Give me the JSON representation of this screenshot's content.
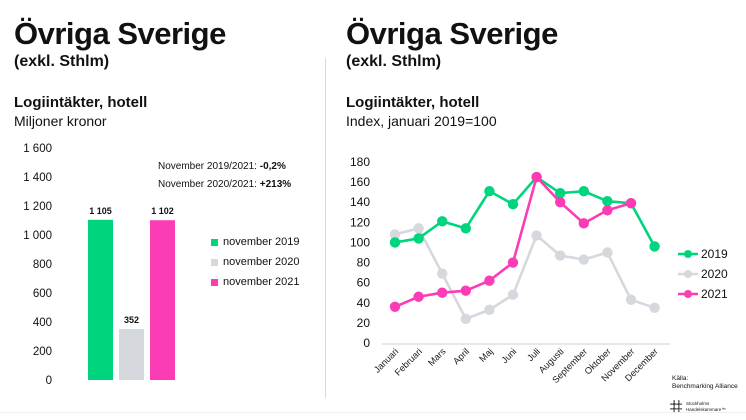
{
  "left_panel": {
    "title": "Övriga Sverige",
    "subtitle": "(exkl. Sthlm)",
    "chart_heading": "Logiintäkter, hotell",
    "chart_subheading": "Miljoner kronor",
    "annotations": [
      {
        "label": "November 2019/2021: ",
        "value": "-0,2%"
      },
      {
        "label": "November 2020/2021: ",
        "value": "+213%"
      }
    ]
  },
  "right_panel": {
    "title": "Övriga Sverige",
    "subtitle": "(exkl. Sthlm)",
    "chart_heading": "Logiintäkter, hotell",
    "chart_subheading": "Index, januari 2019=100",
    "source_label": "Källa:",
    "source_name": "Benchmarking Alliance",
    "logo_line1": "Stockholms",
    "logo_line2": "Handelskammare™"
  },
  "colors": {
    "green": "#00D57E",
    "gray": "#D5D8DC",
    "pink": "#FB3CB4",
    "axis_line": "#e7e7e7",
    "text": "#111111"
  },
  "chart_data": [
    {
      "type": "bar",
      "title": "Logiintäkter, hotell",
      "ylabel": "Miljoner kronor",
      "categories": [
        "november 2019",
        "november 2020",
        "november 2021"
      ],
      "values": [
        1105,
        352,
        1102
      ],
      "value_labels": [
        "1 105",
        "352",
        "1 102"
      ],
      "bar_colors": [
        "#00D57E",
        "#D5D8DC",
        "#FB3CB4"
      ],
      "ylim": [
        0,
        1600
      ],
      "yticks": [
        0,
        200,
        400,
        600,
        800,
        1000,
        1200,
        1400,
        1600
      ],
      "ytick_labels": [
        "0",
        "200",
        "400",
        "600",
        "800",
        "1 000",
        "1 200",
        "1 400",
        "1 600"
      ],
      "grid": false,
      "legend_position": "right",
      "legend": [
        {
          "label": "november 2019",
          "color": "#00D57E"
        },
        {
          "label": "november 2020",
          "color": "#D5D8DC"
        },
        {
          "label": "november 2021",
          "color": "#FB3CB4"
        }
      ]
    },
    {
      "type": "line",
      "title": "Logiintäkter, hotell",
      "ylabel": "Index, januari 2019=100",
      "categories": [
        "Januari",
        "Februari",
        "Mars",
        "April",
        "Maj",
        "Juni",
        "Juli",
        "Augusti",
        "September",
        "Oktober",
        "November",
        "December"
      ],
      "series": [
        {
          "name": "2020",
          "color": "#D5D8DC",
          "values": [
            108,
            114,
            69,
            24,
            33,
            48,
            107,
            87,
            83,
            90,
            43,
            35
          ]
        },
        {
          "name": "2019",
          "color": "#00D57E",
          "values": [
            100,
            104,
            121,
            114,
            151,
            138,
            165,
            149,
            151,
            141,
            139,
            96
          ]
        },
        {
          "name": "2021",
          "color": "#FB3CB4",
          "values": [
            36,
            46,
            50,
            52,
            62,
            80,
            165,
            140,
            119,
            132,
            139,
            null
          ]
        }
      ],
      "legend_order": [
        "2019",
        "2020",
        "2021"
      ],
      "ylim": [
        0,
        180
      ],
      "yticks": [
        0,
        20,
        40,
        60,
        80,
        100,
        120,
        140,
        160,
        180
      ],
      "grid": false,
      "legend_position": "right"
    }
  ]
}
